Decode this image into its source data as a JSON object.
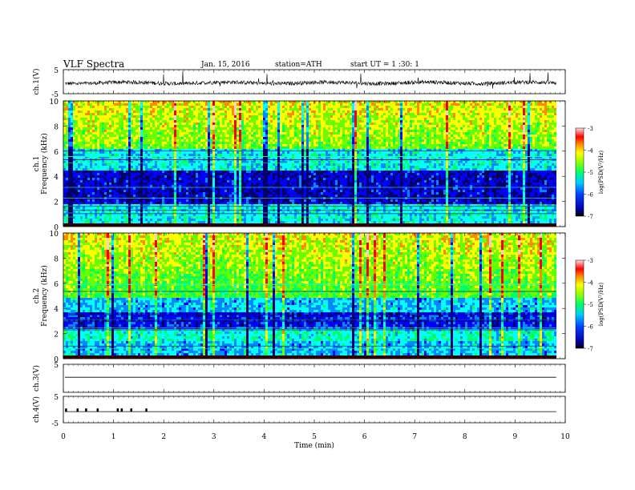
{
  "header": {
    "title": "VLF  Spectra",
    "date": "Jan. 15, 2016",
    "station": "station=ATH",
    "start": "start  UT  =   1  :30: 1"
  },
  "chart_data": [
    {
      "type": "line",
      "panel": "ch1-waveform",
      "ylabel": "ch.1(V)",
      "yticks": [
        "5",
        "-5"
      ],
      "ylim": [
        -5,
        5
      ],
      "x": [
        0,
        9.82
      ],
      "baseline": -0.5,
      "note_spikes": "periodic spikes approx every 1 min"
    },
    {
      "type": "heatmap",
      "panel": "ch1-spectrogram",
      "ylabel_channel": "ch.1",
      "ylabel": "Frequency  (kHz)",
      "yticks": [
        "0",
        "2",
        "4",
        "6",
        "8",
        "10"
      ],
      "ylim": [
        0,
        10
      ],
      "xlim": [
        0,
        9.82
      ],
      "colorbar": {
        "label": "log(PSD(V²/Hz)",
        "ticks": [
          "-3",
          "-4",
          "-5",
          "-6",
          "-7"
        ],
        "range": [
          -7,
          -3
        ]
      }
    },
    {
      "type": "heatmap",
      "panel": "ch2-spectrogram",
      "ylabel_channel": "ch.2",
      "ylabel": "Frequency  (kHz)",
      "yticks": [
        "0",
        "2",
        "4",
        "6",
        "8",
        "10"
      ],
      "ylim": [
        0,
        10
      ],
      "xlim": [
        0,
        9.82
      ],
      "colorbar": {
        "label": "log(PSD(V²/Hz)",
        "ticks": [
          "-3",
          "-4",
          "-5",
          "-6",
          "-7"
        ],
        "range": [
          -7,
          -3
        ]
      }
    },
    {
      "type": "line",
      "panel": "ch3-waveform",
      "ylabel": "ch.3(V)",
      "yticks": [
        "5"
      ],
      "ylim": [
        -5,
        5
      ],
      "x": [
        0,
        9.82
      ],
      "baseline": -0.2
    },
    {
      "type": "line",
      "panel": "ch4-waveform",
      "ylabel": "ch.4(V)",
      "yticks": [
        "5",
        "-5"
      ],
      "ylim": [
        -5,
        5
      ],
      "x": [
        0,
        9.82
      ],
      "baseline": -0.2,
      "markers_min": [
        0.05,
        0.28,
        0.45,
        0.68,
        1.08,
        1.16,
        1.35,
        1.65
      ]
    }
  ],
  "xaxis": {
    "label": "Time  (min)",
    "ticks": [
      "0",
      "1",
      "2",
      "3",
      "4",
      "5",
      "6",
      "7",
      "8",
      "9",
      "10"
    ],
    "xlim": [
      0,
      10
    ]
  },
  "colors": {
    "cmap": [
      "#000066",
      "#0000ff",
      "#0088ff",
      "#00ffff",
      "#00ff66",
      "#66ff00",
      "#ffff00",
      "#ff8800",
      "#ff0000",
      "#ffcccc"
    ]
  }
}
